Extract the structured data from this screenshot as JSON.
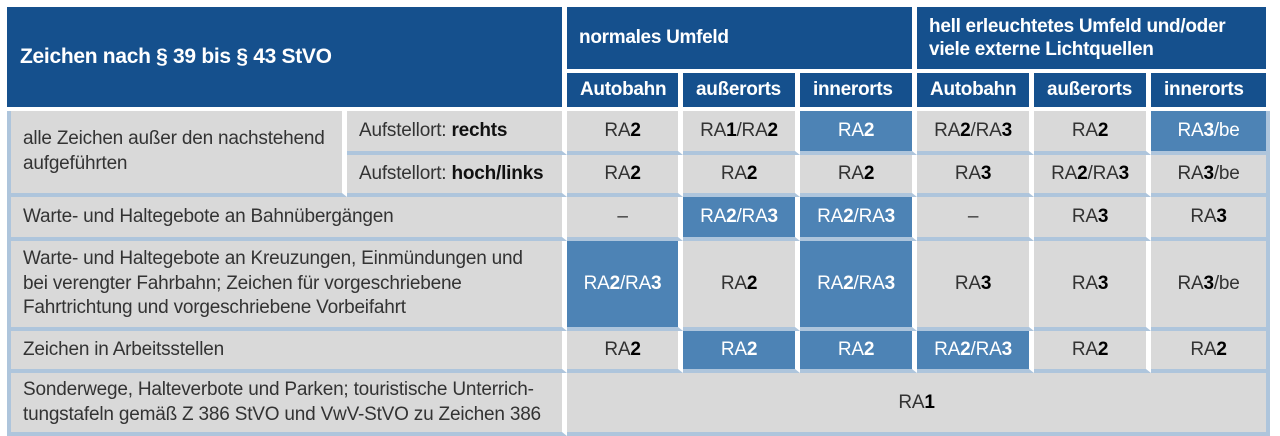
{
  "table": {
    "corner_header": "Zeichen nach § 39 bis § 43 StVO",
    "col_groups": [
      {
        "label": "normales Umfeld"
      },
      {
        "label": "hell erleuchtetes Umfeld und/oder viele externe Lichtquellen"
      }
    ],
    "sub_headers": [
      "Autobahn",
      "außerorts",
      "innerorts",
      "Autobahn",
      "außerorts",
      "innerorts"
    ],
    "rows": [
      {
        "label": "alle Zeichen außer den nachstehend aufgeführten",
        "sub_rows": [
          {
            "aufstellort": {
              "prefix": "Aufstellort: ",
              "value": "rechts"
            },
            "values": [
              "RA2",
              "RA1/RA2",
              "RA2",
              "RA2/RA3",
              "RA2",
              "RA3/be"
            ],
            "highlighted": [
              false,
              false,
              true,
              false,
              false,
              true
            ]
          },
          {
            "aufstellort": {
              "prefix": "Aufstellort: ",
              "value": "hoch/links"
            },
            "values": [
              "RA2",
              "RA2",
              "RA2",
              "RA3",
              "RA2/RA3",
              "RA3/be"
            ],
            "highlighted": [
              false,
              false,
              false,
              false,
              false,
              false
            ]
          }
        ]
      },
      {
        "label": "Warte- und Haltegebote an Bahnübergängen",
        "values": [
          "–",
          "RA2/RA3",
          "RA2/RA3",
          "–",
          "RA3",
          "RA3"
        ],
        "highlighted": [
          false,
          true,
          true,
          false,
          false,
          false
        ]
      },
      {
        "label": "Warte- und Haltegebote an Kreuzungen, Einmündungen und bei verengter Fahrbahn; Zeichen für vorgeschriebene Fahrtrichtung und vorgeschriebene Vorbeifahrt",
        "values": [
          "RA2/RA3",
          "RA2",
          "RA2/RA3",
          "RA3",
          "RA3",
          "RA3/be"
        ],
        "highlighted": [
          true,
          false,
          true,
          false,
          false,
          false
        ]
      },
      {
        "label": "Zeichen in Arbeitsstellen",
        "values": [
          "RA2",
          "RA2",
          "RA2",
          "RA2/RA3",
          "RA2",
          "RA2"
        ],
        "highlighted": [
          false,
          true,
          true,
          true,
          false,
          false
        ]
      },
      {
        "label": "Sonderwege, Halteverbote und Parken; touristische Unterrich-tungstafeln gemäß Z 386 StVO und VwV-StVO zu Zeichen 386",
        "merged_value": "RA1"
      }
    ]
  },
  "colors": {
    "header_blue": "#15508d",
    "highlight_blue": "#4d83b5",
    "grid_line_blue": "#aec5dc",
    "cell_gray": "#d9d9d9"
  }
}
